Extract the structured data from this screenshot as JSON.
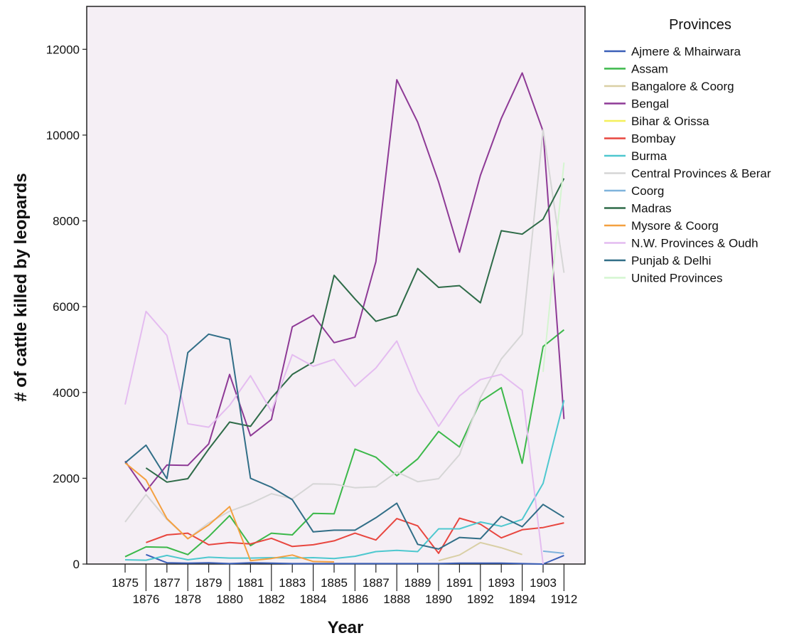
{
  "chart_data": {
    "type": "line",
    "xlabel": "Year",
    "ylabel": "# of cattle killed by leopards",
    "ylim": [
      0,
      13000
    ],
    "yticks": [
      0,
      2000,
      4000,
      6000,
      8000,
      10000,
      12000
    ],
    "x": [
      "1875",
      "1876",
      "1877",
      "1878",
      "1879",
      "1880",
      "1881",
      "1882",
      "1883",
      "1884",
      "1885",
      "1886",
      "1887",
      "1888",
      "1889",
      "1890",
      "1891",
      "1892",
      "1893",
      "1894",
      "1903",
      "1912"
    ],
    "grid": false,
    "legend": {
      "title": "Provinces",
      "placement": "right"
    },
    "series": [
      {
        "name": "Ajmere & Mhairwara",
        "color": "#3b5fb8",
        "values": [
          null,
          220,
          30,
          20,
          30,
          10,
          30,
          20,
          10,
          10,
          10,
          10,
          10,
          10,
          10,
          10,
          20,
          20,
          20,
          10,
          0,
          200
        ]
      },
      {
        "name": "Assam",
        "color": "#3cb84a",
        "values": [
          170,
          400,
          390,
          220,
          640,
          1130,
          430,
          720,
          680,
          1180,
          1170,
          2680,
          2490,
          2060,
          2450,
          3090,
          2730,
          3790,
          4110,
          2350,
          5070,
          5460
        ]
      },
      {
        "name": "Bangalore & Coorg",
        "color": "#d9cfa5",
        "values": [
          null,
          null,
          null,
          null,
          null,
          null,
          null,
          null,
          null,
          null,
          null,
          null,
          null,
          null,
          null,
          80,
          210,
          500,
          380,
          220,
          null,
          null
        ]
      },
      {
        "name": "Bengal",
        "color": "#8e3a96",
        "values": [
          2400,
          1700,
          2310,
          2300,
          2800,
          4420,
          2990,
          3370,
          5530,
          5800,
          5160,
          5290,
          7050,
          11290,
          10300,
          8910,
          7270,
          9060,
          10390,
          11450,
          10090,
          3380
        ]
      },
      {
        "name": "Bihar & Orissa",
        "color": "#f4f05a",
        "values": [
          null,
          null,
          null,
          null,
          null,
          null,
          null,
          null,
          null,
          null,
          null,
          null,
          null,
          null,
          null,
          null,
          null,
          null,
          null,
          null,
          null,
          null
        ]
      },
      {
        "name": "Bombay",
        "color": "#e8463f",
        "values": [
          null,
          500,
          680,
          720,
          450,
          500,
          470,
          600,
          410,
          450,
          540,
          720,
          560,
          1060,
          890,
          250,
          1070,
          930,
          610,
          800,
          850,
          960
        ]
      },
      {
        "name": "Burma",
        "color": "#4ec8cf",
        "values": [
          100,
          90,
          200,
          100,
          160,
          140,
          140,
          150,
          140,
          150,
          130,
          180,
          290,
          320,
          290,
          820,
          820,
          980,
          880,
          1040,
          1880,
          3820
        ]
      },
      {
        "name": "Central Provinces & Berar",
        "color": "#d6d6d6",
        "values": [
          980,
          1620,
          1040,
          590,
          960,
          1230,
          1410,
          1640,
          1520,
          1870,
          1860,
          1780,
          1800,
          2150,
          1920,
          1990,
          2550,
          3880,
          4780,
          5360,
          10130,
          6790
        ]
      },
      {
        "name": "Coorg",
        "color": "#7fb3dc",
        "values": [
          null,
          null,
          null,
          null,
          null,
          null,
          null,
          null,
          null,
          null,
          null,
          null,
          null,
          null,
          null,
          null,
          null,
          null,
          null,
          null,
          300,
          250
        ]
      },
      {
        "name": "Madras",
        "color": "#2e6b48",
        "values": [
          null,
          2240,
          1910,
          1990,
          2680,
          3310,
          3210,
          3870,
          4420,
          4710,
          6730,
          6180,
          5660,
          5800,
          6890,
          6450,
          6490,
          6090,
          7770,
          7690,
          8040,
          8990
        ]
      },
      {
        "name": "Mysore & Coorg",
        "color": "#f4a040",
        "values": [
          2360,
          1960,
          1060,
          590,
          910,
          1340,
          80,
          130,
          210,
          60,
          50,
          null,
          null,
          null,
          null,
          null,
          null,
          null,
          null,
          null,
          null,
          null
        ]
      },
      {
        "name": "N.W. Provinces & Oudh",
        "color": "#e4bcf0",
        "values": [
          3720,
          5890,
          5330,
          3270,
          3190,
          3700,
          4390,
          3560,
          4880,
          4610,
          4770,
          4140,
          4570,
          5200,
          4030,
          3210,
          3920,
          4300,
          4420,
          4050,
          0,
          null
        ]
      },
      {
        "name": "Punjab & Delhi",
        "color": "#316e87",
        "values": [
          2360,
          2770,
          1990,
          4930,
          5360,
          5240,
          2000,
          1790,
          1500,
          750,
          790,
          790,
          1080,
          1420,
          460,
          350,
          620,
          590,
          1110,
          870,
          1390,
          1090
        ]
      },
      {
        "name": "United Provinces",
        "color": "#d4f5d0",
        "values": [
          null,
          null,
          null,
          null,
          null,
          null,
          null,
          null,
          null,
          null,
          null,
          null,
          null,
          null,
          null,
          null,
          null,
          null,
          null,
          null,
          4480,
          9360
        ]
      }
    ]
  }
}
